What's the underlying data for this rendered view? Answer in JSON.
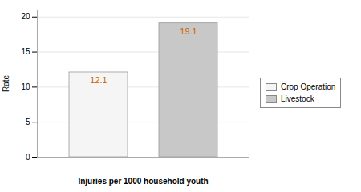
{
  "chart_data": {
    "type": "bar",
    "categories": [
      "Crop Operation",
      "Livestock"
    ],
    "values": [
      12.1,
      19.1
    ],
    "colors": [
      "#f5f5f5",
      "#c8c8c8"
    ],
    "xlabel": "Injuries per 1000 household youth",
    "ylabel": "Rate",
    "ylim": [
      0,
      21
    ],
    "yticks": [
      0,
      5,
      10,
      15,
      20
    ],
    "grid": true,
    "data_labels": true,
    "tick_labels": "y",
    "legend": "right"
  }
}
